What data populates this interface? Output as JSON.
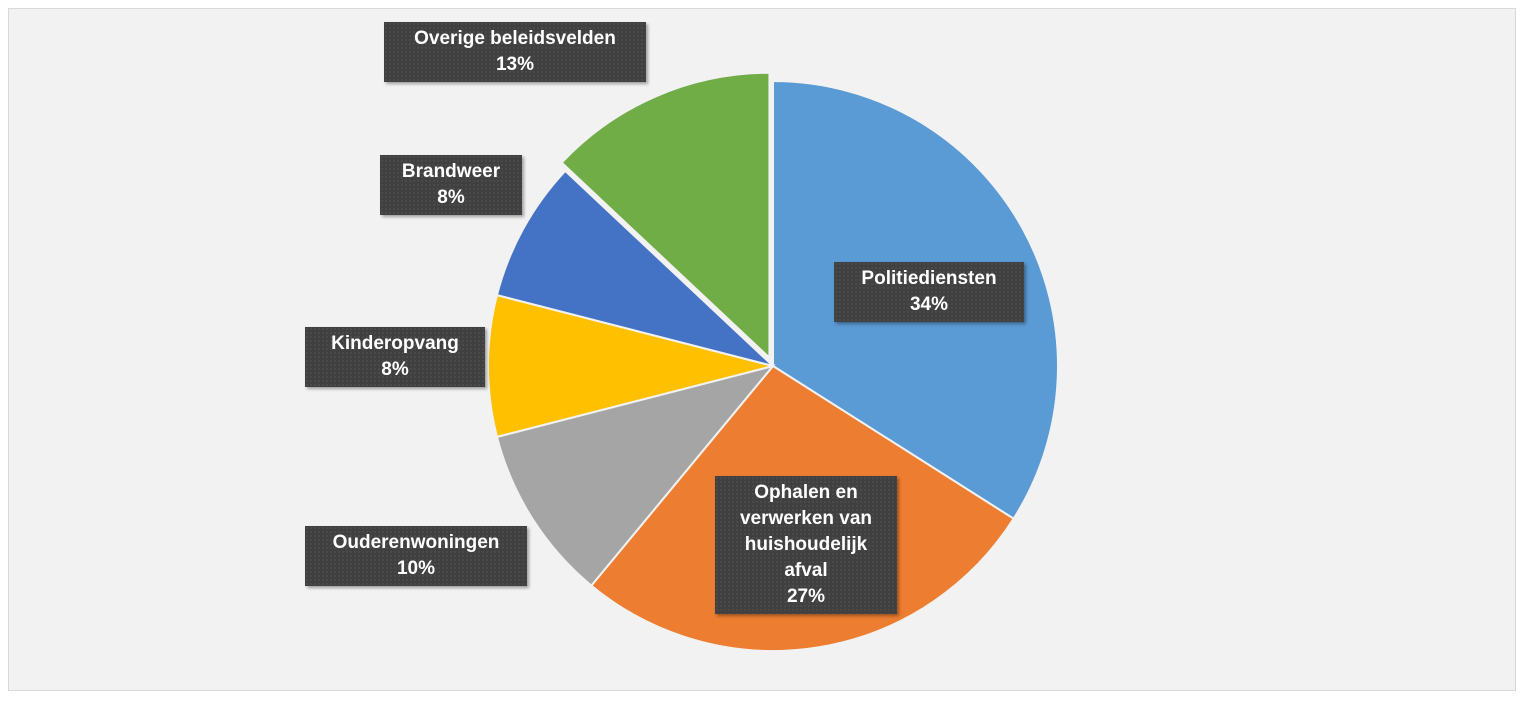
{
  "chart_data": {
    "type": "pie",
    "categories": [
      "Politiediensten",
      "Ophalen en verwerken van huishoudelijk afval",
      "Ouderenwoningen",
      "Kinderopvang",
      "Brandweer",
      "Overige beleidsvelden"
    ],
    "values": [
      34,
      27,
      10,
      8,
      8,
      13
    ],
    "value_labels": [
      "34%",
      "27%",
      "10%",
      "8%",
      "8%",
      "13%"
    ],
    "colors": [
      "#5b9bd5",
      "#ed7d31",
      "#a5a5a5",
      "#ffc000",
      "#4472c4",
      "#70ad47"
    ]
  }
}
